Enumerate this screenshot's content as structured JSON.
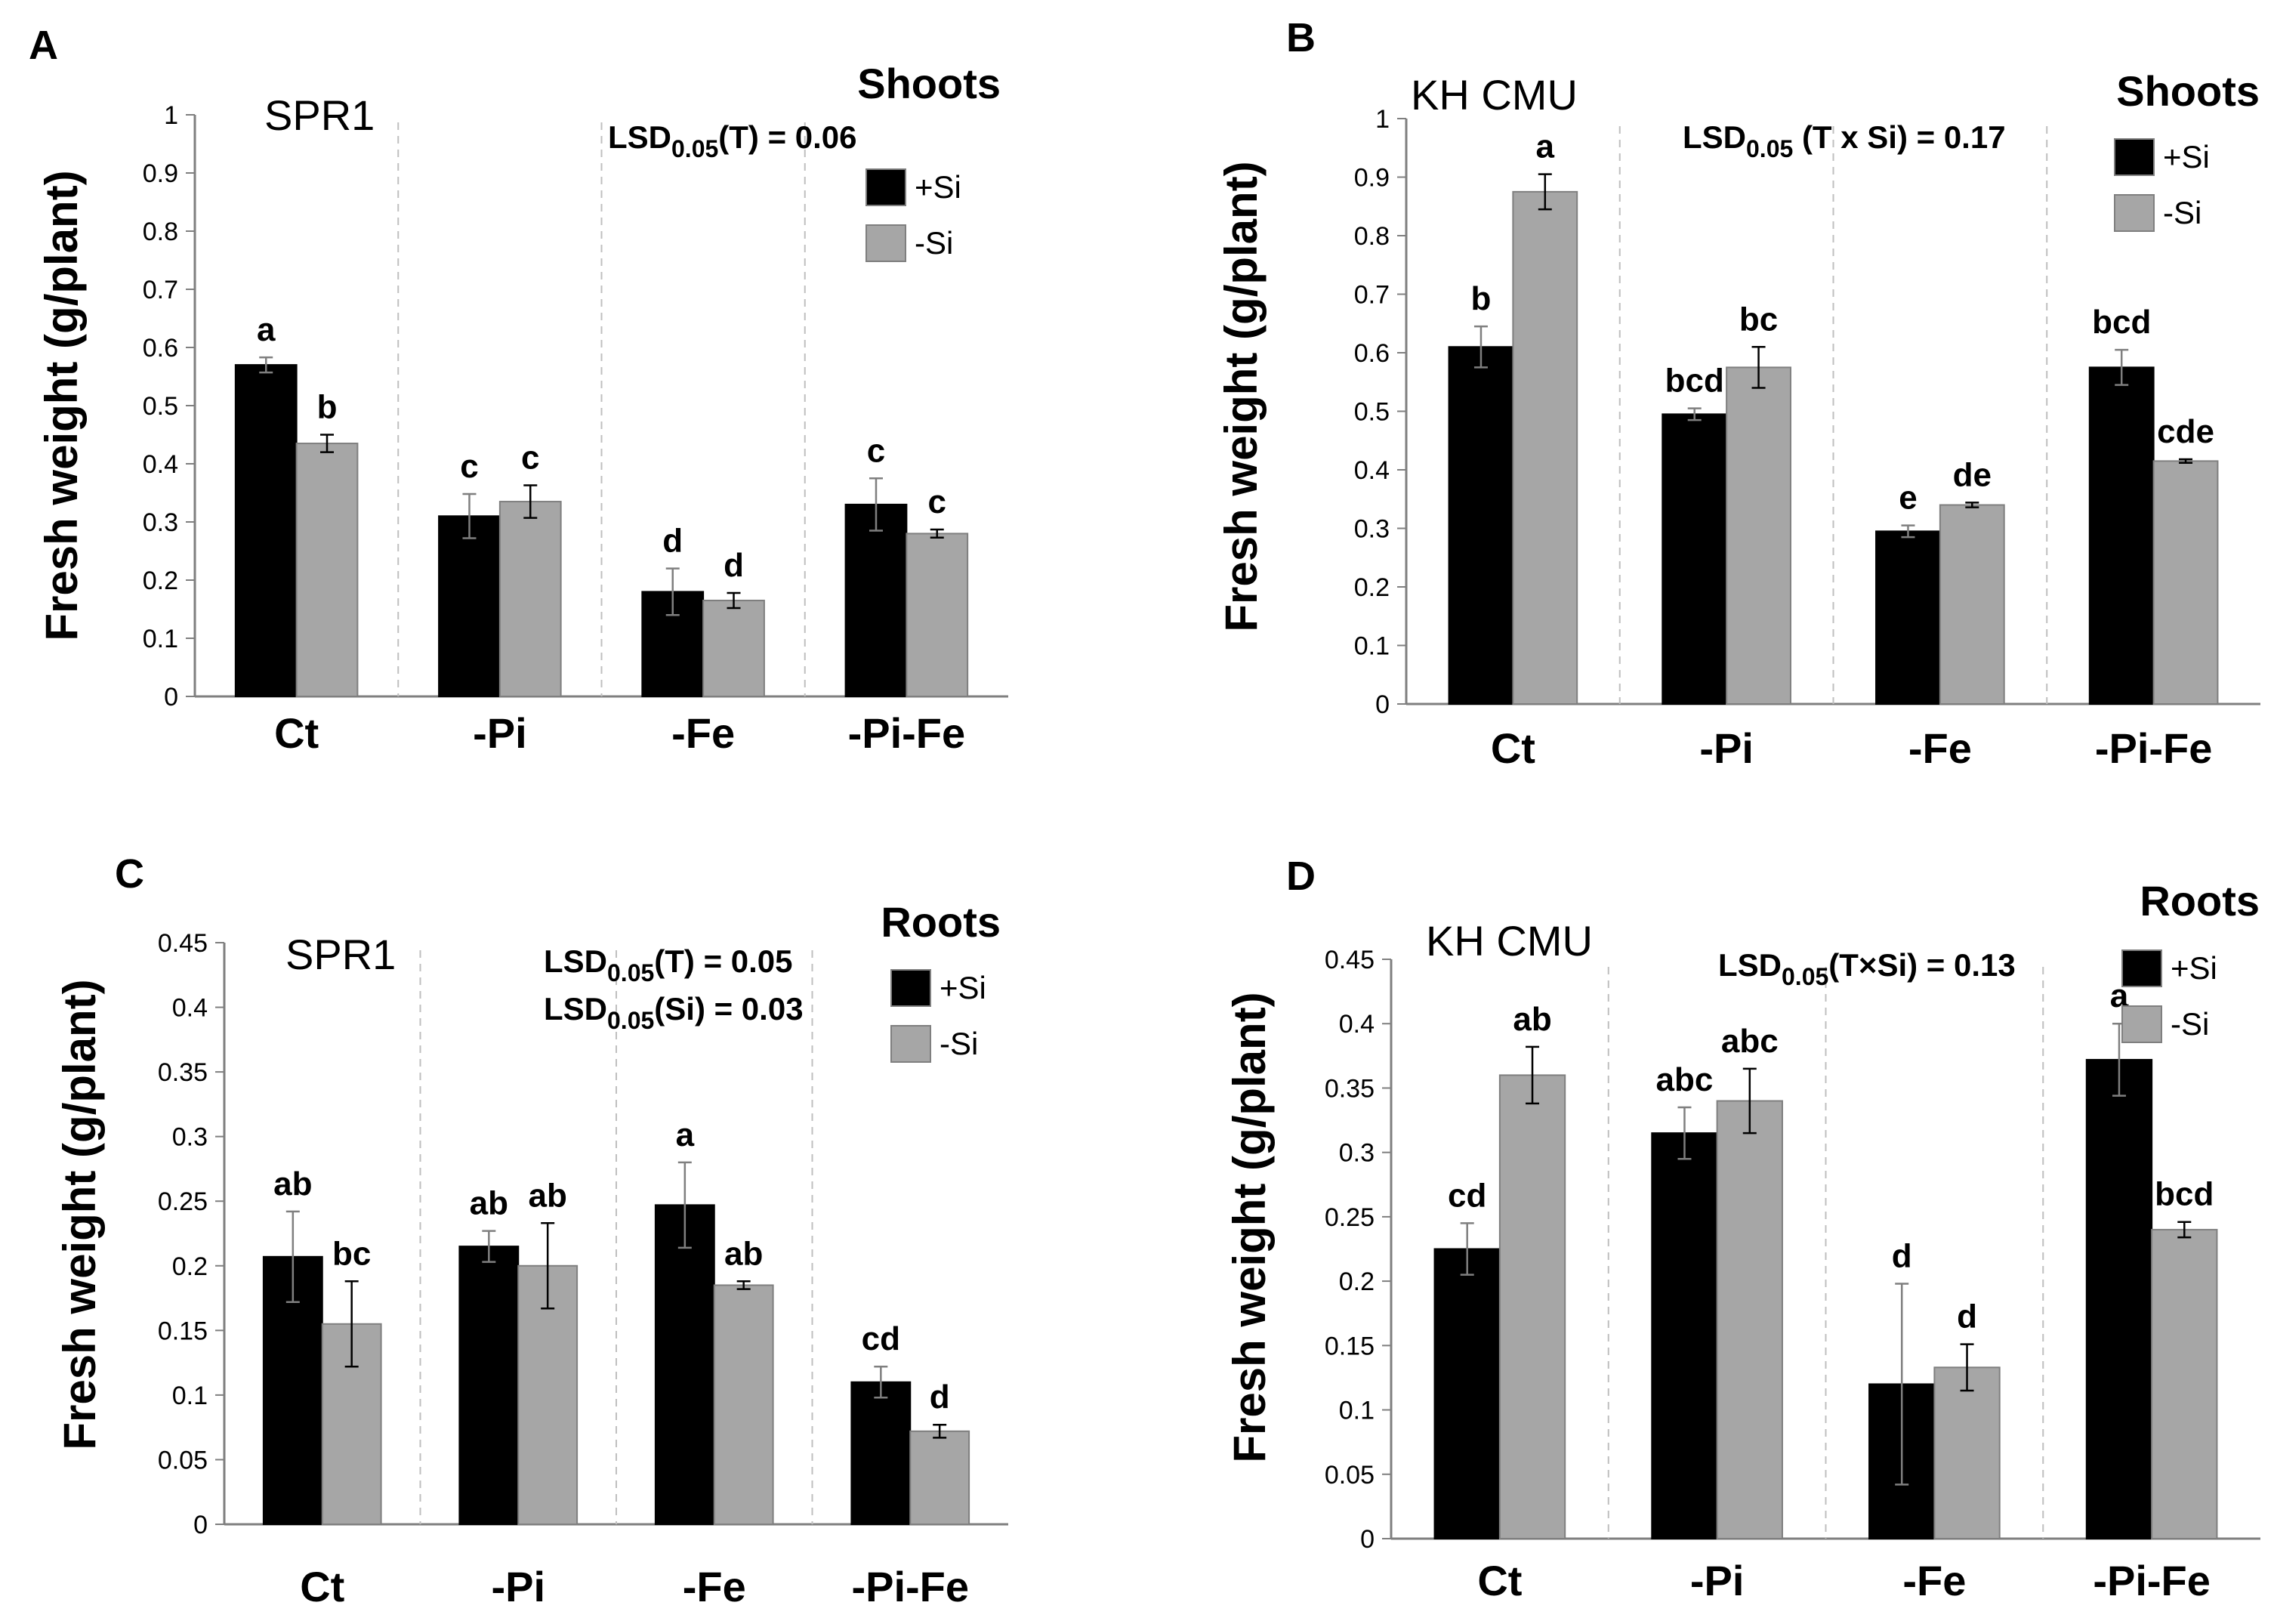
{
  "chart_data": [
    {
      "type": "bar",
      "panel": "A",
      "cultivar": "SPR1",
      "organ": "Shoots",
      "ylabel": "Fresh weight (g/plant)",
      "ylim": [
        0,
        1
      ],
      "yticks": [
        "0",
        "0.1",
        "0.2",
        "0.3",
        "0.4",
        "0.5",
        "0.6",
        "0.7",
        "0.8",
        "0.9",
        "1"
      ],
      "categories": [
        "Ct",
        "-Pi",
        "-Fe",
        "-Pi-Fe"
      ],
      "lsd": [
        {
          "prefix": "LSD",
          "sub": "0.05",
          "suffix": "(T) = 0.06"
        }
      ],
      "legend": [
        "+Si",
        "-Si"
      ],
      "series": [
        {
          "name": "+Si",
          "color": "#000000",
          "values": [
            0.57,
            0.31,
            0.18,
            0.33
          ],
          "errors": [
            0.013,
            0.038,
            0.04,
            0.045
          ],
          "letters": [
            "a",
            "c",
            "d",
            "c"
          ]
        },
        {
          "name": "-Si",
          "color": "#a6a6a6",
          "values": [
            0.435,
            0.335,
            0.165,
            0.28
          ],
          "errors": [
            0.015,
            0.028,
            0.013,
            0.007
          ],
          "letters": [
            "b",
            "c",
            "d",
            "c"
          ]
        }
      ]
    },
    {
      "type": "bar",
      "panel": "B",
      "cultivar": "KH CMU",
      "organ": "Shoots",
      "ylabel": "Fresh weight (g/plant)",
      "ylim": [
        0,
        1
      ],
      "yticks": [
        "0",
        "0.1",
        "0.2",
        "0.3",
        "0.4",
        "0.5",
        "0.6",
        "0.7",
        "0.8",
        "0.9",
        "1"
      ],
      "categories": [
        "Ct",
        "-Pi",
        "-Fe",
        "-Pi-Fe"
      ],
      "lsd": [
        {
          "prefix": "LSD",
          "sub": "0.05",
          "suffix": " (T x Si) = 0.17"
        }
      ],
      "legend": [
        "+Si",
        "-Si"
      ],
      "series": [
        {
          "name": "+Si",
          "color": "#000000",
          "values": [
            0.61,
            0.495,
            0.295,
            0.575
          ],
          "errors": [
            0.035,
            0.01,
            0.01,
            0.03
          ],
          "letters": [
            "b",
            "bcd",
            "e",
            "bcd"
          ]
        },
        {
          "name": "-Si",
          "color": "#a6a6a6",
          "values": [
            0.875,
            0.575,
            0.34,
            0.415
          ],
          "errors": [
            0.03,
            0.035,
            0.004,
            0.003
          ],
          "letters": [
            "a",
            "bc",
            "de",
            "cde"
          ]
        }
      ]
    },
    {
      "type": "bar",
      "panel": "C",
      "cultivar": "SPR1",
      "organ": "Roots",
      "ylabel": "Fresh weight (g/plant)",
      "ylim": [
        0,
        0.45
      ],
      "yticks": [
        "0",
        "0.05",
        "0.1",
        "0.15",
        "0.2",
        "0.25",
        "0.3",
        "0.35",
        "0.4",
        "0.45"
      ],
      "categories": [
        "Ct",
        "-Pi",
        "-Fe",
        "-Pi-Fe"
      ],
      "lsd": [
        {
          "prefix": "LSD",
          "sub": "0.05",
          "suffix": "(T) = 0.05"
        },
        {
          "prefix": "LSD",
          "sub": "0.05",
          "suffix": "(Si) = 0.03"
        }
      ],
      "legend": [
        "+Si",
        "-Si"
      ],
      "series": [
        {
          "name": "+Si",
          "color": "#000000",
          "values": [
            0.207,
            0.215,
            0.247,
            0.11
          ],
          "errors": [
            0.035,
            0.012,
            0.033,
            0.012
          ],
          "letters": [
            "ab",
            "ab",
            "a",
            "cd"
          ]
        },
        {
          "name": "-Si",
          "color": "#a6a6a6",
          "values": [
            0.155,
            0.2,
            0.185,
            0.072
          ],
          "errors": [
            0.033,
            0.033,
            0.003,
            0.005
          ],
          "letters": [
            "bc",
            "ab",
            "ab",
            "d"
          ]
        }
      ]
    },
    {
      "type": "bar",
      "panel": "D",
      "cultivar": "KH CMU",
      "organ": "Roots",
      "ylabel": "Fresh weight (g/plant)",
      "ylim": [
        0,
        0.45
      ],
      "yticks": [
        "0",
        "0.05",
        "0.1",
        "0.15",
        "0.2",
        "0.25",
        "0.3",
        "0.35",
        "0.4",
        "0.45"
      ],
      "categories": [
        "Ct",
        "-Pi",
        "-Fe",
        "-Pi-Fe"
      ],
      "lsd": [
        {
          "prefix": "LSD",
          "sub": "0.05",
          "suffix": "(T×Si) = 0.13"
        }
      ],
      "legend": [
        "+Si",
        "-Si"
      ],
      "series": [
        {
          "name": "+Si",
          "color": "#000000",
          "values": [
            0.225,
            0.315,
            0.12,
            0.372
          ],
          "errors": [
            0.02,
            0.02,
            0.078,
            0.028
          ],
          "letters": [
            "cd",
            "abc",
            "d",
            "a"
          ]
        },
        {
          "name": "-Si",
          "color": "#a6a6a6",
          "values": [
            0.36,
            0.34,
            0.133,
            0.24
          ],
          "errors": [
            0.022,
            0.025,
            0.018,
            0.006
          ],
          "letters": [
            "ab",
            "abc",
            "d",
            "bcd"
          ]
        }
      ]
    }
  ]
}
